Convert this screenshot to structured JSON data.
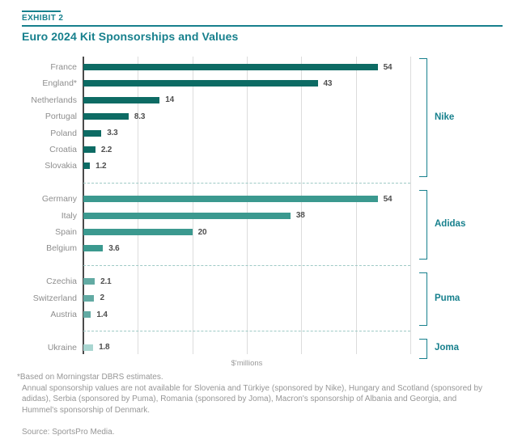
{
  "header": {
    "exhibit_label": "EXHIBIT 2",
    "title": "Euro 2024 Kit Sponsorships and Values"
  },
  "chart_data": {
    "type": "bar",
    "orientation": "horizontal",
    "title": "Euro 2024 Kit Sponsorships and Values",
    "xlabel": "$'millions",
    "ylabel": "",
    "xlim": [
      0,
      60
    ],
    "gridline_step": 10,
    "grid": true,
    "legend_position": "right-brackets",
    "groups": [
      {
        "sponsor": "Nike",
        "bar_color": "#0d6b64",
        "items": [
          {
            "country": "France",
            "value": 54,
            "label": "54"
          },
          {
            "country": "England*",
            "value": 43,
            "label": "43"
          },
          {
            "country": "Netherlands",
            "value": 14,
            "label": "14"
          },
          {
            "country": "Portugal",
            "value": 8.3,
            "label": "8.3"
          },
          {
            "country": "Poland",
            "value": 3.3,
            "label": "3.3"
          },
          {
            "country": "Croatia",
            "value": 2.2,
            "label": "2.2"
          },
          {
            "country": "Slovakia",
            "value": 1.2,
            "label": "1.2"
          }
        ]
      },
      {
        "sponsor": "Adidas",
        "bar_color": "#3b998f",
        "items": [
          {
            "country": "Germany",
            "value": 54,
            "label": "54"
          },
          {
            "country": "Italy",
            "value": 38,
            "label": "38"
          },
          {
            "country": "Spain",
            "value": 20,
            "label": "20"
          },
          {
            "country": "Belgium",
            "value": 3.6,
            "label": "3.6"
          }
        ]
      },
      {
        "sponsor": "Puma",
        "bar_color": "#62aaa3",
        "items": [
          {
            "country": "Czechia",
            "value": 2.1,
            "label": "2.1"
          },
          {
            "country": "Switzerland",
            "value": 2,
            "label": "2"
          },
          {
            "country": "Austria",
            "value": 1.4,
            "label": "1.4"
          }
        ]
      },
      {
        "sponsor": "Joma",
        "bar_color": "#a9d6d1",
        "items": [
          {
            "country": "Ukraine",
            "value": 1.8,
            "label": "1.8"
          }
        ]
      }
    ]
  },
  "footnotes": {
    "note1": "*Based on Morningstar DBRS estimates.",
    "note2": "Annual sponsorship values are not available for Slovenia and Türkiye (sponsored by Nike), Hungary and Scotland (sponsored by adidas), Serbia (sponsored by Puma), Romania (sponsored by Joma), Macron's sponsorship of Albania and Georgia, and Hummel's sponsorship of Denmark.",
    "source": "Source: SportsPro Media."
  },
  "colors": {
    "accent_teal": "#17808d",
    "nike_bar": "#0d6b64",
    "adidas_bar": "#3b998f",
    "puma_bar": "#62aaa3",
    "joma_bar": "#a9d6d1",
    "gridline": "#dcdcdc",
    "axis": "#4a4a4a",
    "country_label": "#8e8e8e",
    "value_label": "#4f4f4f",
    "separator_dash": "#9ec9c5",
    "footnote_text": "#969696"
  }
}
